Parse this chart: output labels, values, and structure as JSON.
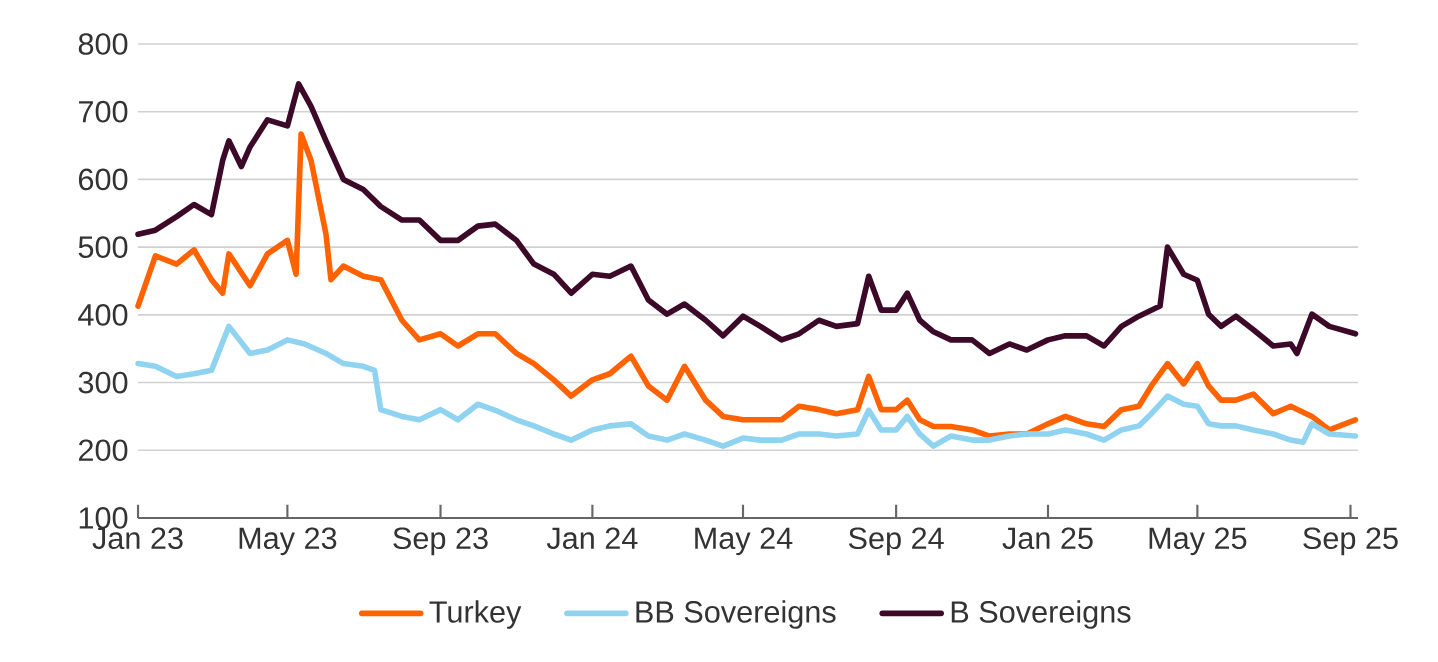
{
  "chart_data": {
    "type": "line",
    "xlim": [
      "2023-01-01",
      "2025-09-07"
    ],
    "ylim": [
      100,
      800
    ],
    "yticks": [
      100,
      200,
      300,
      400,
      500,
      600,
      700,
      800
    ],
    "xticks": [
      {
        "value": "2023-01-01",
        "label": "Jan 23"
      },
      {
        "value": "2023-05-01",
        "label": "May 23"
      },
      {
        "value": "2023-09-01",
        "label": "Sep 23"
      },
      {
        "value": "2024-01-01",
        "label": "Jan 24"
      },
      {
        "value": "2024-05-01",
        "label": "May 24"
      },
      {
        "value": "2024-09-01",
        "label": "Sep 24"
      },
      {
        "value": "2025-01-01",
        "label": "Jan 25"
      },
      {
        "value": "2025-05-01",
        "label": "May 25"
      },
      {
        "value": "2025-09-01",
        "label": "Sep 25"
      }
    ],
    "grid": "y",
    "legend": "bottom",
    "marker": "none",
    "line_style": "solid",
    "series": [
      {
        "name": "Turkey",
        "color": "#ff6200",
        "x": [
          "2023-01-01",
          "2023-01-15",
          "2023-02-01",
          "2023-02-15",
          "2023-03-01",
          "2023-03-10",
          "2023-03-15",
          "2023-04-01",
          "2023-04-15",
          "2023-05-01",
          "2023-05-08",
          "2023-05-12",
          "2023-05-20",
          "2023-06-01",
          "2023-06-05",
          "2023-06-15",
          "2023-07-01",
          "2023-07-15",
          "2023-08-01",
          "2023-08-15",
          "2023-09-01",
          "2023-09-15",
          "2023-10-01",
          "2023-10-15",
          "2023-11-01",
          "2023-11-15",
          "2023-12-01",
          "2023-12-15",
          "2024-01-01",
          "2024-01-15",
          "2024-02-01",
          "2024-02-15",
          "2024-03-01",
          "2024-03-15",
          "2024-04-01",
          "2024-04-15",
          "2024-05-01",
          "2024-05-15",
          "2024-06-01",
          "2024-06-15",
          "2024-07-01",
          "2024-07-15",
          "2024-08-01",
          "2024-08-10",
          "2024-08-20",
          "2024-09-01",
          "2024-09-10",
          "2024-09-20",
          "2024-10-01",
          "2024-10-15",
          "2024-11-01",
          "2024-11-15",
          "2024-12-01",
          "2024-12-15",
          "2025-01-01",
          "2025-01-15",
          "2025-02-01",
          "2025-02-15",
          "2025-03-01",
          "2025-03-15",
          "2025-03-25",
          "2025-04-07",
          "2025-04-20",
          "2025-05-01",
          "2025-05-10",
          "2025-05-20",
          "2025-06-01",
          "2025-06-15",
          "2025-07-01",
          "2025-07-15",
          "2025-08-01",
          "2025-08-15",
          "2025-09-05"
        ],
        "values": [
          413,
          487,
          475,
          496,
          452,
          432,
          490,
          443,
          490,
          510,
          460,
          667,
          628,
          519,
          452,
          472,
          457,
          452,
          392,
          363,
          372,
          354,
          372,
          372,
          343,
          328,
          304,
          280,
          304,
          313,
          339,
          295,
          274,
          324,
          274,
          250,
          245,
          245,
          245,
          265,
          260,
          254,
          260,
          309,
          260,
          260,
          274,
          245,
          235,
          235,
          230,
          221,
          224,
          224,
          239,
          250,
          239,
          235,
          260,
          265,
          295,
          328,
          298,
          328,
          295,
          274,
          274,
          283,
          254,
          265,
          250,
          230,
          245
        ]
      },
      {
        "name": "BB Sovereigns",
        "color": "#8fd3f0",
        "x": [
          "2023-01-01",
          "2023-01-15",
          "2023-02-01",
          "2023-02-15",
          "2023-03-01",
          "2023-03-15",
          "2023-04-01",
          "2023-04-15",
          "2023-05-01",
          "2023-05-15",
          "2023-06-01",
          "2023-06-15",
          "2023-07-01",
          "2023-07-10",
          "2023-07-15",
          "2023-08-01",
          "2023-08-15",
          "2023-09-01",
          "2023-09-15",
          "2023-10-01",
          "2023-10-15",
          "2023-11-01",
          "2023-11-15",
          "2023-12-01",
          "2023-12-15",
          "2024-01-01",
          "2024-01-15",
          "2024-02-01",
          "2024-02-15",
          "2024-03-01",
          "2024-03-15",
          "2024-04-01",
          "2024-04-15",
          "2024-05-01",
          "2024-05-15",
          "2024-06-01",
          "2024-06-15",
          "2024-07-01",
          "2024-07-15",
          "2024-08-01",
          "2024-08-10",
          "2024-08-20",
          "2024-09-01",
          "2024-09-10",
          "2024-09-20",
          "2024-10-01",
          "2024-10-15",
          "2024-11-01",
          "2024-11-15",
          "2024-12-01",
          "2024-12-15",
          "2025-01-01",
          "2025-01-15",
          "2025-02-01",
          "2025-02-15",
          "2025-03-01",
          "2025-03-15",
          "2025-03-25",
          "2025-04-07",
          "2025-04-20",
          "2025-05-01",
          "2025-05-10",
          "2025-05-20",
          "2025-06-01",
          "2025-06-15",
          "2025-07-01",
          "2025-07-15",
          "2025-07-25",
          "2025-08-01",
          "2025-08-15",
          "2025-09-05"
        ],
        "values": [
          328,
          324,
          309,
          313,
          318,
          383,
          343,
          348,
          363,
          357,
          343,
          328,
          324,
          318,
          260,
          250,
          245,
          260,
          245,
          268,
          259,
          245,
          236,
          224,
          215,
          230,
          236,
          239,
          221,
          215,
          224,
          215,
          206,
          218,
          215,
          215,
          224,
          224,
          221,
          224,
          259,
          230,
          230,
          250,
          224,
          206,
          221,
          215,
          215,
          221,
          224,
          224,
          230,
          224,
          215,
          230,
          236,
          254,
          280,
          268,
          265,
          239,
          236,
          236,
          230,
          224,
          215,
          212,
          239,
          224,
          221
        ]
      },
      {
        "name": "B Sovereigns",
        "color": "#3c0a28",
        "x": [
          "2023-01-01",
          "2023-01-15",
          "2023-02-01",
          "2023-02-15",
          "2023-03-01",
          "2023-03-10",
          "2023-03-15",
          "2023-03-25",
          "2023-04-01",
          "2023-04-15",
          "2023-05-01",
          "2023-05-10",
          "2023-05-20",
          "2023-06-01",
          "2023-06-15",
          "2023-07-01",
          "2023-07-15",
          "2023-08-01",
          "2023-08-15",
          "2023-09-01",
          "2023-09-15",
          "2023-10-01",
          "2023-10-15",
          "2023-11-01",
          "2023-11-15",
          "2023-12-01",
          "2023-12-15",
          "2024-01-01",
          "2024-01-15",
          "2024-02-01",
          "2024-02-15",
          "2024-03-01",
          "2024-03-15",
          "2024-04-01",
          "2024-04-15",
          "2024-05-01",
          "2024-05-15",
          "2024-06-01",
          "2024-06-15",
          "2024-07-01",
          "2024-07-15",
          "2024-08-01",
          "2024-08-10",
          "2024-08-20",
          "2024-09-01",
          "2024-09-10",
          "2024-09-20",
          "2024-10-01",
          "2024-10-15",
          "2024-11-01",
          "2024-11-15",
          "2024-12-01",
          "2024-12-15",
          "2025-01-01",
          "2025-01-15",
          "2025-02-01",
          "2025-02-15",
          "2025-03-01",
          "2025-03-15",
          "2025-04-01",
          "2025-04-07",
          "2025-04-20",
          "2025-05-01",
          "2025-05-10",
          "2025-05-20",
          "2025-06-01",
          "2025-06-15",
          "2025-07-01",
          "2025-07-15",
          "2025-07-20",
          "2025-08-01",
          "2025-08-15",
          "2025-09-05"
        ],
        "values": [
          519,
          525,
          545,
          563,
          548,
          628,
          657,
          619,
          648,
          688,
          679,
          741,
          708,
          657,
          600,
          585,
          560,
          540,
          540,
          510,
          510,
          531,
          534,
          510,
          475,
          460,
          432,
          460,
          457,
          472,
          422,
          401,
          416,
          392,
          369,
          398,
          383,
          363,
          372,
          392,
          383,
          387,
          457,
          407,
          407,
          432,
          392,
          375,
          363,
          363,
          343,
          357,
          348,
          363,
          369,
          369,
          354,
          383,
          398,
          413,
          500,
          460,
          451,
          401,
          383,
          398,
          378,
          354,
          357,
          343,
          401,
          383,
          372
        ]
      }
    ]
  }
}
